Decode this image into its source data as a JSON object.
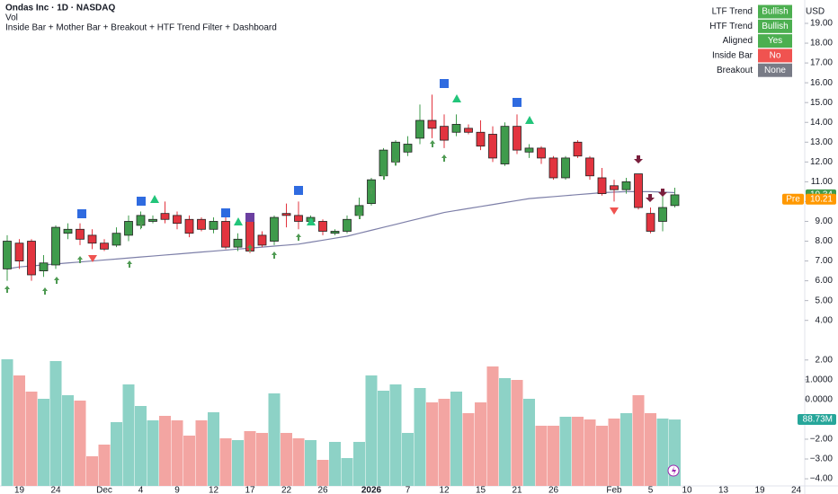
{
  "chart_data": {
    "type": "candlestick",
    "title": "Ondas Inc · 1D · NASDAQ",
    "volume_title": "Vol",
    "indicator_title": "Inside Bar + Mother Bar + Breakout + HTF Trend Filter + Dashboard",
    "currency": "USD",
    "categories": [
      null,
      "19",
      null,
      null,
      "24",
      null,
      null,
      null,
      "Dec",
      null,
      null,
      "4",
      null,
      null,
      "9",
      null,
      null,
      "12",
      null,
      null,
      "17",
      null,
      null,
      "22",
      null,
      null,
      "26",
      null,
      null,
      null,
      "2026",
      null,
      null,
      "7",
      null,
      null,
      "12",
      null,
      null,
      "15",
      null,
      null,
      "21",
      null,
      null,
      "26",
      null,
      null,
      null,
      null,
      "Feb",
      null,
      null,
      "5",
      null,
      null,
      "10",
      null,
      null,
      "13",
      null,
      null,
      "19",
      null,
      null,
      "24"
    ],
    "open": [
      6.6,
      7.9,
      8.0,
      6.5,
      6.8,
      8.4,
      8.6,
      8.3,
      7.9,
      7.8,
      8.3,
      8.8,
      9.0,
      9.4,
      9.3,
      9.1,
      9.1,
      8.6,
      9.0,
      7.7,
      9.3,
      8.3,
      8.0,
      9.4,
      9.3,
      9.0,
      9.0,
      8.4,
      8.5,
      9.3,
      9.9,
      11.3,
      12.0,
      12.5,
      13.2,
      14.1,
      13.8,
      13.5,
      13.7,
      13.5,
      13.4,
      11.9,
      13.8,
      12.5,
      12.7,
      12.2,
      11.2,
      13.0,
      12.2,
      11.2,
      10.8,
      10.6,
      11.4,
      9.4,
      9.0,
      9.8,
      null,
      null,
      null,
      null,
      null,
      null,
      null,
      null,
      null,
      null
    ],
    "high": [
      8.3,
      8.1,
      8.1,
      7.3,
      8.8,
      8.9,
      8.9,
      8.6,
      8.1,
      8.7,
      9.3,
      9.5,
      9.3,
      10.0,
      9.5,
      9.3,
      9.2,
      9.2,
      9.2,
      8.4,
      9.4,
      8.5,
      9.3,
      9.9,
      10.0,
      9.3,
      9.1,
      8.6,
      9.3,
      10.2,
      11.2,
      12.7,
      13.1,
      13.3,
      14.9,
      15.4,
      14.4,
      14.4,
      13.9,
      14.1,
      13.8,
      14.0,
      14.4,
      12.9,
      12.8,
      12.3,
      12.3,
      13.1,
      12.3,
      11.7,
      11.1,
      11.2,
      11.4,
      9.7,
      10.3,
      10.7,
      null,
      null,
      null,
      null,
      null,
      null,
      null,
      null,
      null,
      null
    ],
    "low": [
      6.0,
      6.6,
      6.0,
      6.2,
      6.6,
      8.1,
      7.8,
      7.6,
      7.5,
      7.7,
      8.0,
      8.6,
      8.9,
      8.9,
      8.6,
      8.2,
      8.5,
      8.4,
      7.6,
      7.5,
      7.4,
      7.7,
      7.8,
      8.7,
      8.6,
      8.8,
      8.3,
      8.3,
      8.4,
      9.2,
      9.8,
      11.1,
      11.8,
      12.3,
      12.9,
      13.2,
      12.7,
      13.3,
      13.4,
      12.6,
      12.0,
      11.8,
      12.4,
      12.2,
      11.9,
      11.1,
      11.1,
      12.2,
      11.1,
      10.3,
      10.0,
      10.4,
      9.6,
      8.4,
      8.5,
      9.7,
      null,
      null,
      null,
      null,
      null,
      null,
      null,
      null,
      null,
      null
    ],
    "close": [
      8.0,
      7.0,
      6.3,
      6.9,
      8.7,
      8.6,
      8.1,
      7.9,
      7.6,
      8.4,
      9.0,
      9.3,
      9.1,
      9.1,
      8.9,
      8.4,
      8.6,
      9.0,
      7.7,
      8.1,
      7.5,
      7.8,
      9.2,
      9.3,
      9.0,
      9.2,
      8.5,
      8.5,
      9.1,
      9.8,
      11.1,
      12.6,
      13.0,
      12.9,
      14.1,
      13.7,
      13.1,
      13.9,
      13.5,
      12.8,
      12.2,
      13.8,
      12.6,
      12.7,
      12.2,
      11.2,
      12.2,
      12.3,
      11.3,
      10.4,
      10.6,
      11.0,
      9.7,
      8.5,
      9.7,
      10.34,
      null,
      null,
      null,
      null,
      null,
      null,
      null,
      null,
      null,
      null
    ],
    "ma": [
      6.6,
      6.7,
      6.75,
      6.8,
      6.85,
      6.9,
      6.95,
      7.0,
      7.05,
      7.1,
      7.15,
      7.2,
      7.25,
      7.3,
      7.35,
      7.4,
      7.45,
      7.5,
      7.55,
      7.6,
      7.65,
      7.7,
      7.75,
      7.8,
      7.85,
      7.95,
      8.05,
      8.15,
      8.25,
      8.4,
      8.55,
      8.7,
      8.85,
      9.0,
      9.15,
      9.3,
      9.45,
      9.55,
      9.65,
      9.75,
      9.85,
      9.95,
      10.05,
      10.15,
      10.2,
      10.25,
      10.3,
      10.35,
      10.4,
      10.45,
      10.48,
      10.5,
      10.5,
      10.5,
      10.48,
      10.45,
      null,
      null,
      null,
      null,
      null,
      null,
      null,
      null,
      null,
      null
    ],
    "volume": [
      169.2,
      147.6,
      126,
      116.4,
      166.8,
      121.2,
      114,
      39.6,
      55.2,
      85.2,
      135.6,
      106.8,
      87.6,
      93.6,
      87.6,
      67.2,
      87.6,
      98.4,
      63.6,
      61.2,
      73.2,
      70.8,
      123.6,
      70.8,
      63.6,
      61.2,
      34.8,
      58.8,
      37.2,
      58.8,
      147.6,
      127.2,
      135.6,
      70.8,
      130.8,
      111.6,
      116.4,
      126,
      97.2,
      111.6,
      159.6,
      144,
      141.6,
      116.4,
      80.4,
      80.4,
      92.4,
      92.4,
      88.8,
      80.4,
      90,
      97.2,
      121.2,
      97.2,
      90,
      88.73,
      null,
      null,
      null,
      null,
      null,
      null,
      null,
      null,
      null,
      null
    ],
    "volume_label": "88.73M",
    "last_price": 10.34,
    "pre_label": "Pre",
    "pre_price": 10.21,
    "up_color": "#3f9b4c",
    "down_color": "#e2343f",
    "volume_up_color": "#8dd2c6",
    "volume_down_color": "#f3a5a2",
    "ma_color": "#7d7fa8",
    "ylim": [
      -4.36,
      20.18
    ],
    "yticks": [
      {
        "value": 19,
        "label": "19.00"
      },
      {
        "value": 18,
        "label": "18.00"
      },
      {
        "value": 17,
        "label": "17.00"
      },
      {
        "value": 16,
        "label": "16.00"
      },
      {
        "value": 15,
        "label": "15.00"
      },
      {
        "value": 14,
        "label": "14.00"
      },
      {
        "value": 13,
        "label": "13.00"
      },
      {
        "value": 12,
        "label": "12.00"
      },
      {
        "value": 11,
        "label": "11.00"
      },
      {
        "value": 10,
        "label": "10.00"
      },
      {
        "value": 9,
        "label": "9.00"
      },
      {
        "value": 8,
        "label": "8.00"
      },
      {
        "value": 7,
        "label": "7.00"
      },
      {
        "value": 6,
        "label": "6.00"
      },
      {
        "value": 5,
        "label": "5.00"
      },
      {
        "value": 4,
        "label": "4.00"
      },
      {
        "value": 2,
        "label": "2.00"
      },
      {
        "value": 1,
        "label": "1.0000"
      },
      {
        "value": 0,
        "label": "0.0000"
      },
      {
        "value": -2,
        "label": "−2.00"
      },
      {
        "value": -3,
        "label": "−3.00"
      },
      {
        "value": -4,
        "label": "−4.00"
      }
    ],
    "dashboard": [
      {
        "label": "LTF Trend",
        "value": "Bullish",
        "color": "#4caf50"
      },
      {
        "label": "HTF Trend",
        "value": "Bullish",
        "color": "#4caf50"
      },
      {
        "label": "Aligned",
        "value": "Yes",
        "color": "#4caf50"
      },
      {
        "label": "Inside Bar",
        "value": "No",
        "color": "#f05350"
      },
      {
        "label": "Breakout",
        "value": "None",
        "color": "#787b86"
      }
    ]
  }
}
